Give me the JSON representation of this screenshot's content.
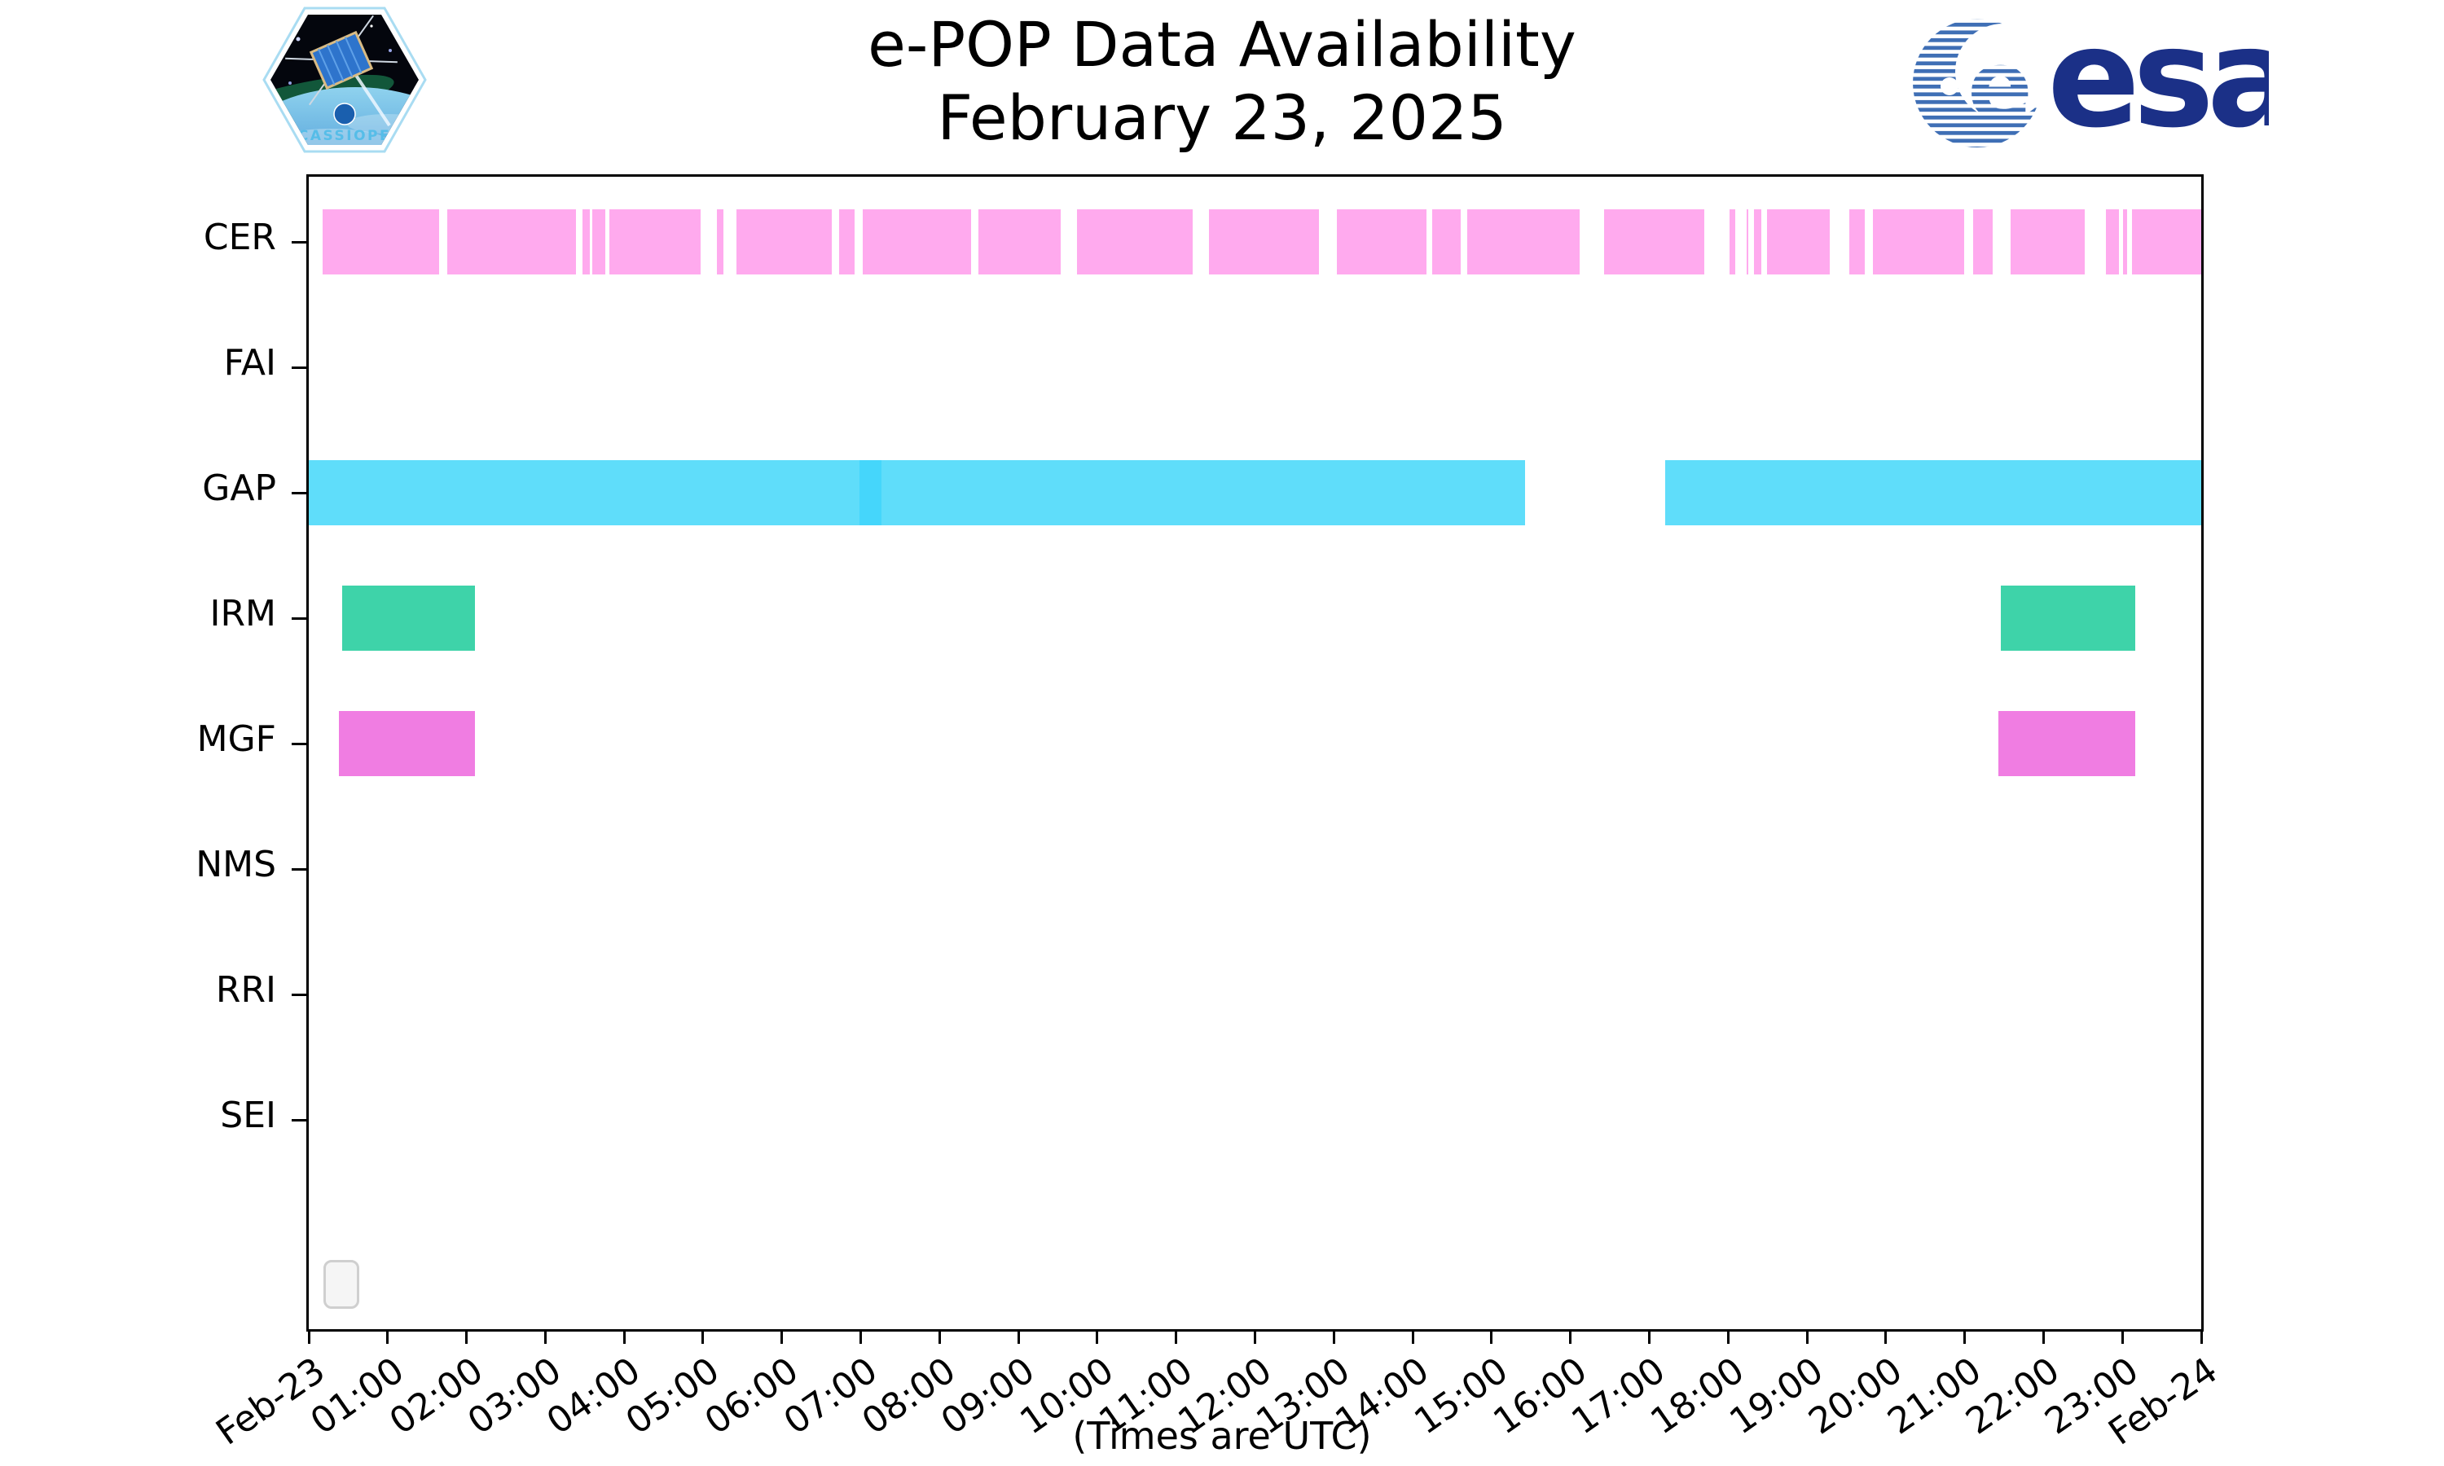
{
  "logos": {
    "cassiope_text": "CASSIOPE",
    "esa_text": "esa",
    "esa_blue": "#1b3087",
    "esa_stripe_blue": "#3f6fb5"
  },
  "chart_data": {
    "type": "bar",
    "subtype": "availability-timeline",
    "title": "e-POP Data Availability",
    "subtitle": "February 23, 2025",
    "xlabel": "(Times are UTC)",
    "grid": false,
    "x_axis": {
      "start_label": "Feb-23",
      "end_label": "Feb-24",
      "range_hours": [
        0,
        24
      ],
      "tick_interval_hours": 1,
      "tick_labels": [
        "Feb-23",
        "01:00",
        "02:00",
        "03:00",
        "04:00",
        "05:00",
        "06:00",
        "07:00",
        "08:00",
        "09:00",
        "10:00",
        "11:00",
        "12:00",
        "13:00",
        "14:00",
        "15:00",
        "16:00",
        "17:00",
        "18:00",
        "19:00",
        "20:00",
        "21:00",
        "22:00",
        "23:00",
        "Feb-24"
      ]
    },
    "categories": [
      "CER",
      "FAI",
      "GAP",
      "IRM",
      "MGF",
      "NMS",
      "RRI",
      "SEI"
    ],
    "series": [
      {
        "name": "CER",
        "color": "#ffaaee",
        "intervals_hours": [
          [
            0.18,
            1.65
          ],
          [
            1.76,
            3.39
          ],
          [
            3.47,
            3.56
          ],
          [
            3.6,
            3.76
          ],
          [
            3.81,
            4.97
          ],
          [
            5.18,
            5.26
          ],
          [
            5.42,
            6.63
          ],
          [
            6.73,
            6.92
          ],
          [
            7.03,
            8.4
          ],
          [
            8.49,
            9.54
          ],
          [
            9.74,
            11.21
          ],
          [
            11.42,
            12.81
          ],
          [
            13.04,
            14.17
          ],
          [
            14.25,
            14.61
          ],
          [
            14.69,
            16.12
          ],
          [
            16.43,
            17.7
          ],
          [
            18.02,
            18.09
          ],
          [
            18.23,
            18.26
          ],
          [
            18.33,
            18.42
          ],
          [
            18.49,
            19.29
          ],
          [
            19.54,
            19.73
          ],
          [
            19.84,
            20.99
          ],
          [
            21.11,
            21.36
          ],
          [
            21.58,
            22.52
          ],
          [
            22.79,
            22.96
          ],
          [
            23.01,
            23.06
          ],
          [
            23.12,
            24.0
          ]
        ]
      },
      {
        "name": "FAI",
        "color": "#ffaaee",
        "intervals_hours": []
      },
      {
        "name": "GAP",
        "color": "#5fddfa",
        "intervals_hours": [
          [
            0.0,
            15.43
          ],
          [
            17.2,
            24.0
          ]
        ],
        "overlap_color": "#45d6fb",
        "overlap_intervals_hours": [
          [
            6.98,
            7.26
          ]
        ]
      },
      {
        "name": "IRM",
        "color": "#3ed3a9",
        "intervals_hours": [
          [
            0.42,
            2.11
          ],
          [
            21.46,
            23.16
          ]
        ]
      },
      {
        "name": "MGF",
        "color": "#f07de2",
        "intervals_hours": [
          [
            0.38,
            2.11
          ],
          [
            21.43,
            23.16
          ]
        ]
      },
      {
        "name": "NMS",
        "color": "#5fddfa",
        "intervals_hours": []
      },
      {
        "name": "RRI",
        "color": "#5fddfa",
        "intervals_hours": []
      },
      {
        "name": "SEI",
        "color": "#5fddfa",
        "intervals_hours": []
      }
    ]
  }
}
